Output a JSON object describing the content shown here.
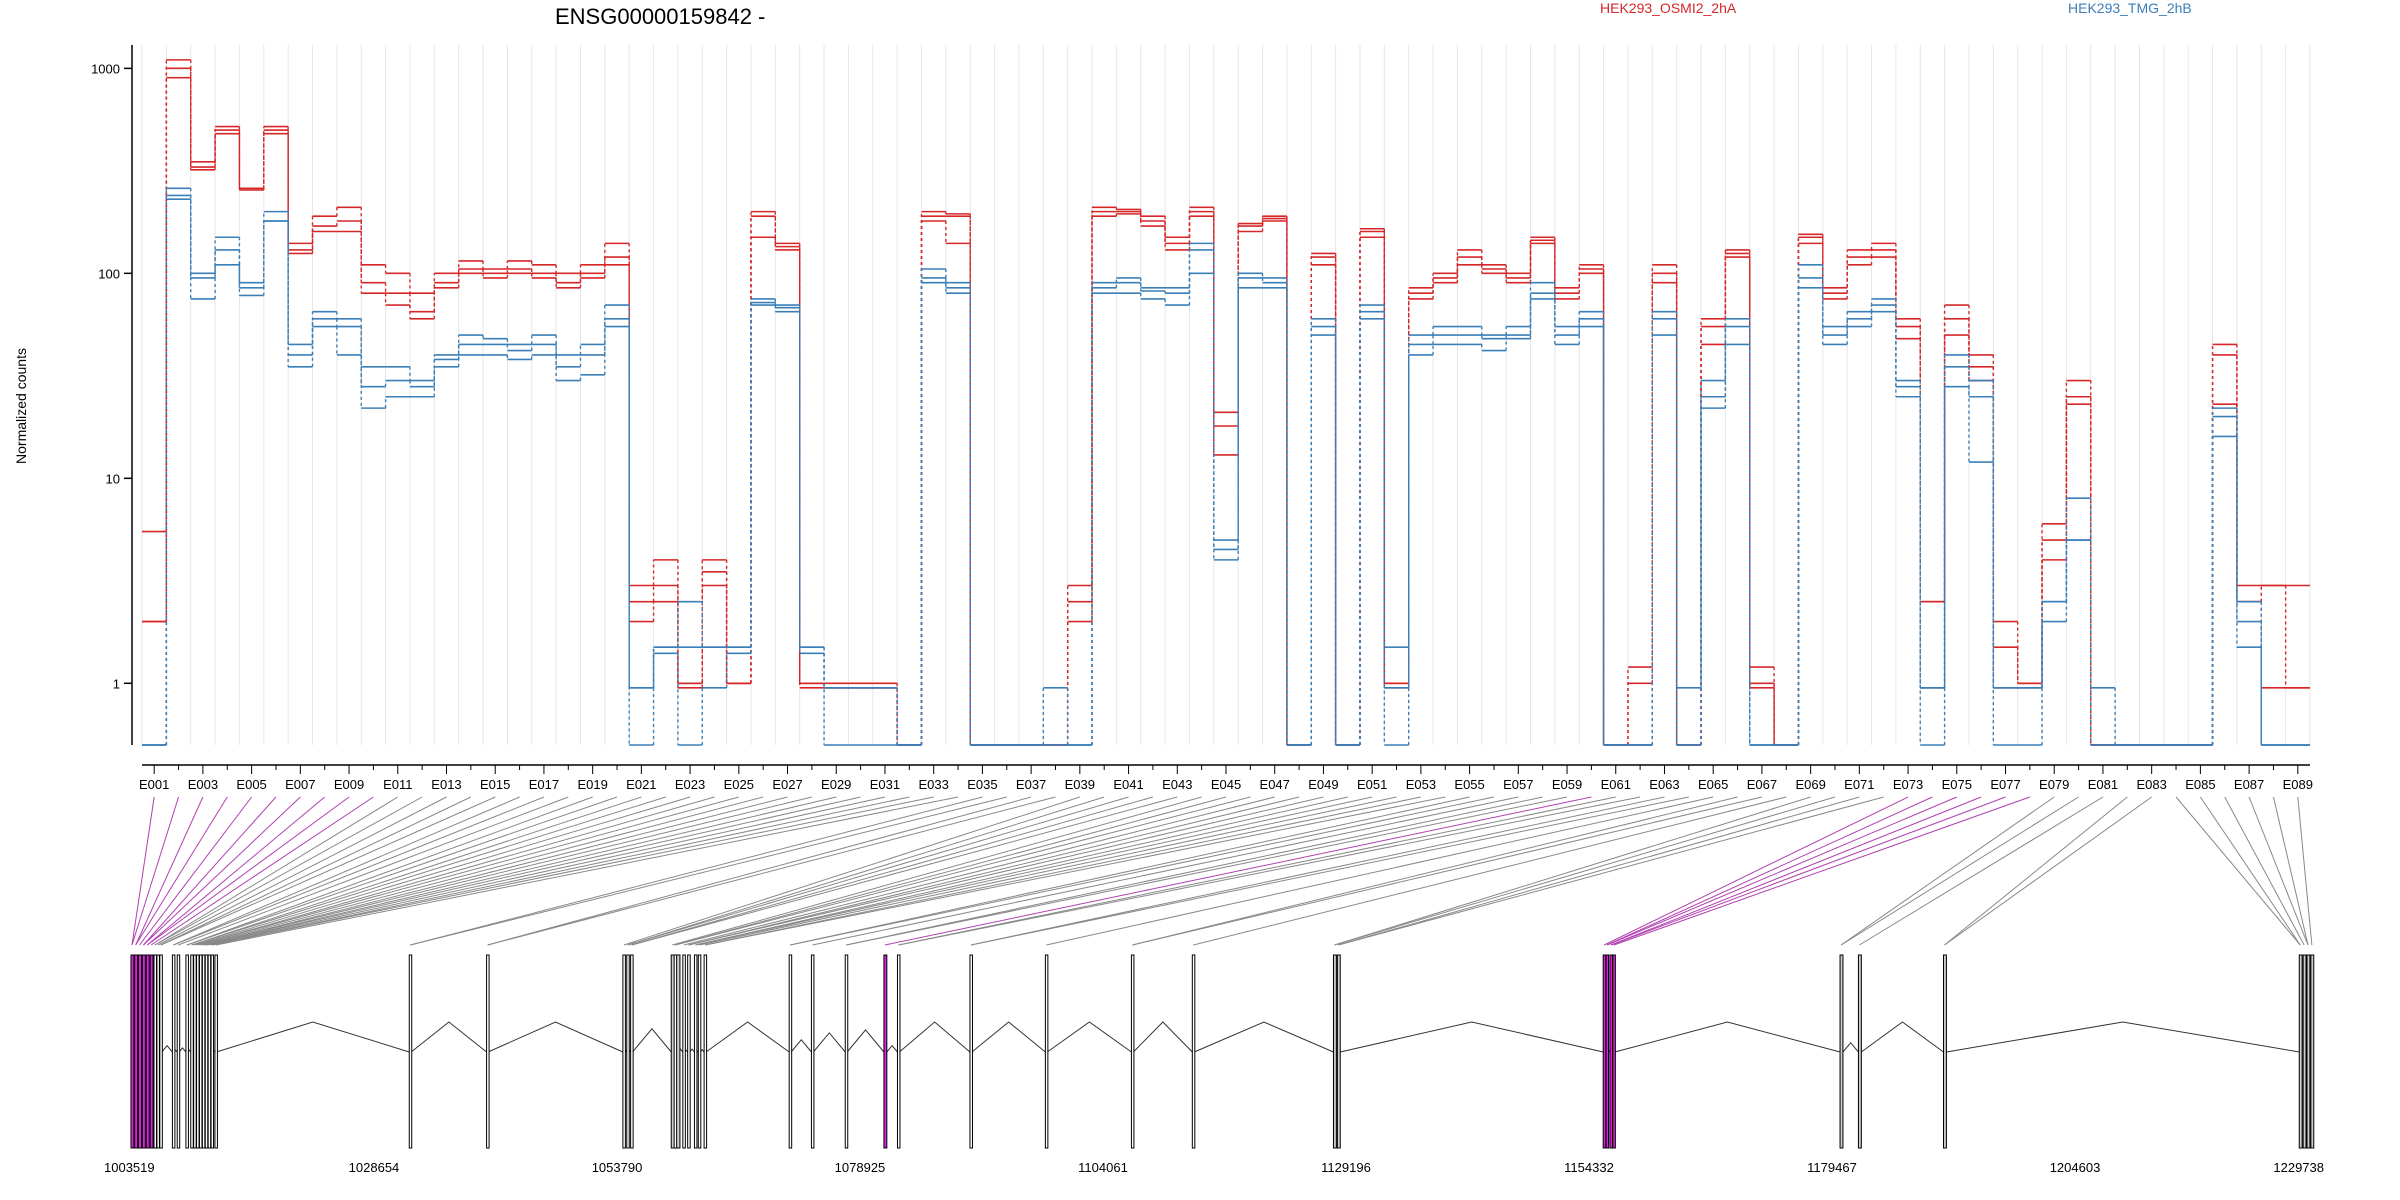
{
  "chart_data": {
    "type": "line",
    "title": "ENSG00000159842 -",
    "ylabel": "Normalized counts",
    "y_scale": "log",
    "y_ticks": [
      1,
      10,
      100,
      1000
    ],
    "y_tick_labels": [
      "1",
      "10",
      "100",
      "1000"
    ],
    "ylim": [
      0.5,
      1300
    ],
    "exon_labels": [
      "E001",
      "E003",
      "E005",
      "E007",
      "E009",
      "E011",
      "E013",
      "E015",
      "E017",
      "E019",
      "E021",
      "E023",
      "E025",
      "E027",
      "E029",
      "E031",
      "E033",
      "E035",
      "E037",
      "E039",
      "E041",
      "E043",
      "E045",
      "E047",
      "E049",
      "E051",
      "E053",
      "E055",
      "E057",
      "E059",
      "E061",
      "E063",
      "E065",
      "E067",
      "E069",
      "E071",
      "E073",
      "E075",
      "E077",
      "E079",
      "E081",
      "E083",
      "E085",
      "E087",
      "E089"
    ],
    "exon_count": 89,
    "legend": [
      {
        "label": "HEK293_OSMI2_2hA",
        "color": "#d62728"
      },
      {
        "label": "HEK293_TMG_2hB",
        "color": "#3b7fb8"
      }
    ],
    "series": [
      {
        "group": "HEK293_OSMI2_2hA",
        "values": [
          5.5,
          1100,
          350,
          520,
          260,
          520,
          140,
          190,
          210,
          110,
          100,
          80,
          100,
          115,
          105,
          115,
          110,
          100,
          110,
          140,
          3,
          4,
          1,
          4,
          1,
          200,
          140,
          1,
          1,
          1,
          1,
          0.5,
          200,
          195,
          0.5,
          0.5,
          0.5,
          0.5,
          3,
          210,
          205,
          190,
          150,
          210,
          21,
          175,
          190,
          0.5,
          125,
          0.5,
          165,
          1,
          85,
          100,
          130,
          110,
          100,
          150,
          85,
          110,
          0.5,
          1.2,
          110,
          0.5,
          60,
          130,
          1.2,
          0.5,
          155,
          85,
          130,
          140,
          60,
          2.5,
          70,
          40,
          2,
          1,
          6,
          30,
          0.5,
          0.5,
          0.5,
          0.5,
          0.5,
          45,
          3,
          3,
          3
        ]
      },
      {
        "group": "HEK293_OSMI2_2hA",
        "values": [
          2,
          1000,
          330,
          500,
          260,
          500,
          130,
          170,
          180,
          90,
          80,
          65,
          90,
          105,
          100,
          105,
          100,
          90,
          100,
          120,
          2.5,
          3,
          1,
          3.5,
          1,
          190,
          135,
          1,
          0.95,
          0.95,
          0.95,
          0.5,
          190,
          190,
          0.5,
          0.5,
          0.5,
          0.5,
          2.5,
          200,
          200,
          180,
          140,
          200,
          18,
          170,
          185,
          0.5,
          120,
          0.5,
          160,
          1,
          80,
          95,
          120,
          105,
          95,
          145,
          80,
          105,
          0.5,
          1,
          100,
          0.5,
          55,
          125,
          1,
          0.5,
          150,
          80,
          120,
          130,
          55,
          2.5,
          60,
          35,
          1.5,
          1,
          5,
          25,
          0.5,
          0.5,
          0.5,
          0.5,
          0.5,
          40,
          2.5,
          3,
          0.95
        ]
      },
      {
        "group": "HEK293_OSMI2_2hA",
        "values": [
          2,
          900,
          320,
          480,
          255,
          480,
          125,
          160,
          160,
          80,
          70,
          60,
          85,
          100,
          95,
          100,
          95,
          85,
          95,
          110,
          2,
          2.5,
          0.95,
          3,
          1,
          150,
          130,
          0.95,
          0.95,
          0.95,
          0.95,
          0.5,
          180,
          140,
          0.5,
          0.5,
          0.5,
          0.5,
          2,
          190,
          195,
          170,
          130,
          190,
          13,
          160,
          180,
          0.5,
          110,
          0.5,
          150,
          0.95,
          75,
          90,
          110,
          100,
          90,
          140,
          75,
          100,
          0.5,
          0.5,
          90,
          0.5,
          45,
          120,
          0.95,
          0.5,
          140,
          75,
          110,
          120,
          48,
          0.95,
          50,
          30,
          0.95,
          0.95,
          4,
          23,
          0.5,
          0.5,
          0.5,
          0.5,
          0.5,
          23,
          2.5,
          0.95,
          0.95
        ]
      },
      {
        "group": "HEK293_TMG_2hB",
        "values": [
          0.5,
          260,
          100,
          150,
          90,
          200,
          45,
          65,
          60,
          35,
          35,
          30,
          40,
          50,
          48,
          45,
          50,
          40,
          45,
          70,
          0.95,
          1.5,
          2.5,
          1.5,
          1.5,
          75,
          70,
          1.5,
          0.95,
          0.95,
          0.95,
          0.5,
          105,
          90,
          0.5,
          0.5,
          0.5,
          0.95,
          0.5,
          90,
          95,
          85,
          85,
          140,
          5,
          100,
          95,
          0.5,
          60,
          0.5,
          70,
          1.5,
          50,
          55,
          55,
          50,
          55,
          90,
          55,
          65,
          0.5,
          0.5,
          65,
          0.95,
          30,
          60,
          0.5,
          0.5,
          110,
          55,
          65,
          75,
          30,
          0.95,
          40,
          30,
          0.95,
          0.95,
          2.5,
          8,
          0.95,
          0.5,
          0.5,
          0.5,
          0.5,
          22,
          2.5,
          0.5,
          0.5
        ]
      },
      {
        "group": "HEK293_TMG_2hB",
        "values": [
          0.5,
          240,
          95,
          130,
          85,
          180,
          40,
          60,
          55,
          28,
          30,
          28,
          38,
          45,
          45,
          42,
          45,
          35,
          40,
          60,
          0.95,
          1.5,
          1.5,
          1.5,
          1.5,
          72,
          68,
          1.5,
          0.95,
          0.95,
          0.95,
          0.5,
          95,
          85,
          0.5,
          0.5,
          0.5,
          0.5,
          0.5,
          85,
          90,
          82,
          80,
          130,
          4.5,
          95,
          90,
          0.5,
          55,
          0.5,
          65,
          0.95,
          45,
          50,
          50,
          48,
          50,
          80,
          50,
          60,
          0.5,
          0.5,
          60,
          0.5,
          25,
          55,
          0.5,
          0.5,
          95,
          50,
          60,
          70,
          28,
          0.95,
          35,
          25,
          0.95,
          0.95,
          2.5,
          5,
          0.5,
          0.5,
          0.5,
          0.5,
          0.5,
          20,
          2,
          0.5,
          0.5
        ]
      },
      {
        "group": "HEK293_TMG_2hB",
        "values": [
          0.5,
          230,
          75,
          110,
          78,
          180,
          35,
          55,
          40,
          22,
          25,
          25,
          35,
          40,
          40,
          38,
          40,
          30,
          32,
          55,
          0.5,
          1.4,
          0.5,
          0.95,
          1.4,
          70,
          65,
          1.4,
          0.5,
          0.5,
          0.5,
          0.5,
          90,
          80,
          0.5,
          0.5,
          0.5,
          0.5,
          0.5,
          80,
          80,
          75,
          70,
          100,
          4,
          85,
          85,
          0.5,
          50,
          0.5,
          60,
          0.5,
          40,
          45,
          45,
          42,
          48,
          75,
          45,
          55,
          0.5,
          0.5,
          50,
          0.5,
          22,
          45,
          0.5,
          0.5,
          85,
          45,
          55,
          65,
          25,
          0.5,
          28,
          12,
          0.5,
          0.5,
          2,
          5,
          0.5,
          0.5,
          0.5,
          0.5,
          0.5,
          16,
          1.5,
          0.5,
          0.5
        ]
      }
    ],
    "genomic_axis": {
      "range": [
        1003519,
        1229738
      ],
      "tick_values": [
        1003519,
        1028654,
        1053790,
        1078925,
        1104061,
        1129196,
        1154332,
        1179467,
        1204603,
        1229738
      ],
      "tick_labels": [
        "1003519",
        "1028654",
        "1053790",
        "1078925",
        "1104061",
        "1129196",
        "1154332",
        "1179467",
        "1204603",
        "1229738"
      ]
    },
    "gene_model": {
      "exon_starts": [
        1003519,
        1003900,
        1004300,
        1004700,
        1005100,
        1005500,
        1005900,
        1006200,
        1006500,
        1007800,
        1008300,
        1009200,
        1009700,
        1010000,
        1010300,
        1010600,
        1010900,
        1011200,
        1011500,
        1011800,
        1012200,
        1032300,
        1040300,
        1054400,
        1054800,
        1055200,
        1059400,
        1059700,
        1060600,
        1061100,
        1061800,
        1062200,
        1062800,
        1071600,
        1073900,
        1077400,
        1081400,
        1082800,
        1090300,
        1098100,
        1107000,
        1113300,
        1127900,
        1128300,
        1155800,
        1156100,
        1156500,
        1156800,
        1180300,
        1182200,
        1191000,
        1227800,
        1228200,
        1228600,
        1229000
      ],
      "exon_widths": [
        300,
        300,
        300,
        300,
        300,
        300,
        200,
        200,
        200,
        200,
        200,
        200,
        200,
        200,
        200,
        200,
        200,
        200,
        200,
        200,
        150,
        200,
        150,
        200,
        200,
        200,
        900,
        200,
        200,
        200,
        200,
        200,
        200,
        200,
        200,
        200,
        300,
        200,
        200,
        200,
        200,
        200,
        300,
        300,
        200,
        200,
        200,
        200,
        300,
        300,
        300,
        300,
        300,
        300,
        300
      ],
      "highlighted": [
        true,
        true,
        true,
        true,
        true,
        true,
        false,
        false,
        false,
        false,
        false,
        false,
        false,
        false,
        false,
        false,
        false,
        false,
        false,
        false,
        false,
        false,
        false,
        false,
        false,
        false,
        false,
        false,
        false,
        false,
        false,
        false,
        false,
        false,
        false,
        false,
        true,
        false,
        false,
        false,
        false,
        false,
        false,
        false,
        true,
        true,
        true,
        true,
        false,
        false,
        false,
        false,
        false,
        false,
        false
      ],
      "grey": [
        false,
        false,
        false,
        false,
        false,
        false,
        false,
        false,
        false,
        false,
        false,
        false,
        false,
        false,
        false,
        false,
        false,
        false,
        false,
        false,
        false,
        false,
        false,
        false,
        false,
        false,
        true,
        false,
        false,
        false,
        false,
        false,
        false,
        false,
        false,
        false,
        false,
        false,
        false,
        false,
        false,
        false,
        true,
        true,
        false,
        false,
        false,
        false,
        true,
        true,
        true,
        true,
        true,
        true,
        true
      ]
    },
    "colors": {
      "highlight": "#e020e0",
      "grey_exon": "#cccccc",
      "link_normal": "#888888",
      "link_highlight": "#b040b0"
    }
  }
}
